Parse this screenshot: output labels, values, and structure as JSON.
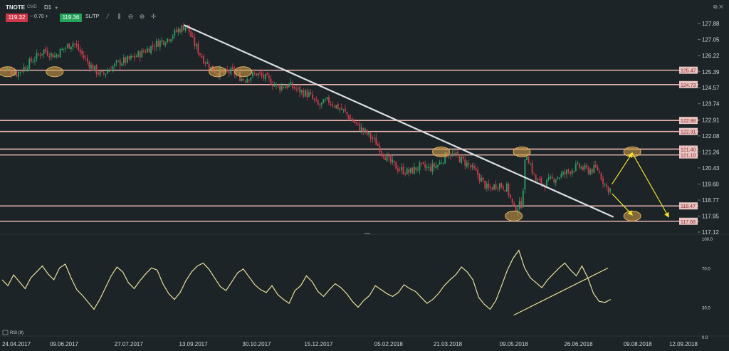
{
  "toolbar": {
    "symbol": "TNOTE",
    "market": "CMD",
    "timeframe": "D1",
    "bid": "119.32",
    "spread_minus": "−",
    "spread": "0.70",
    "spread_plus": "+",
    "ask": "119.36",
    "sltp": "SL/TP",
    "tools": [
      "line-chart-icon",
      "candles-icon",
      "zoom-out-icon",
      "zoom-in-icon",
      "crosshair-icon"
    ]
  },
  "window": {
    "restore_glyph": "⧉",
    "close_glyph": "✕"
  },
  "colors": {
    "background": "#1c2427",
    "bull": "#2aa062",
    "bear": "#d23c4d",
    "level": "#e7b4b0",
    "trend": "#d9dde0",
    "rsi": "#e6df9c",
    "highlight": "#d9a24a",
    "forecast": "#f2e22d"
  },
  "chart_data": [
    {
      "type": "candlestick",
      "title": "TNOTE",
      "ylim": [
        117.12,
        127.88
      ],
      "y_ticks": [
        "127.88",
        "127.05",
        "126.22",
        "125.39",
        "124.57",
        "123.74",
        "122.91",
        "122.08",
        "121.26",
        "120.43",
        "119.60",
        "118.77",
        "117.95",
        "117.12"
      ],
      "x_ticks": [
        "24.04.2017",
        "09.06.2017",
        "27.07.2017",
        "13.09.2017",
        "30.10.2017",
        "15.12.2017",
        "05.02.2018",
        "21.03.2018",
        "09.05.2018",
        "26.06.2018",
        "09.08.2018",
        "12.09.2018"
      ],
      "levels": [
        {
          "value": 125.47,
          "label": "125.47"
        },
        {
          "value": 124.73,
          "label": "124.73"
        },
        {
          "value": 122.88,
          "label": "122.88"
        },
        {
          "value": 122.31,
          "label": "122.31"
        },
        {
          "value": 121.4,
          "label": "121.40"
        },
        {
          "value": 121.1,
          "label": "121.10"
        },
        {
          "value": 118.47,
          "label": "118.47"
        },
        {
          "value": 117.68,
          "label": "117.68"
        }
      ],
      "close_path": [
        [
          "24.04.2017",
          125.6
        ],
        [
          "05.05.2017",
          125.3
        ],
        [
          "15.05.2017",
          125.9
        ],
        [
          "25.05.2017",
          126.5
        ],
        [
          "02.06.2017",
          126.2
        ],
        [
          "09.06.2017",
          126.6
        ],
        [
          "16.06.2017",
          126.9
        ],
        [
          "23.06.2017",
          126.2
        ],
        [
          "30.06.2017",
          125.6
        ],
        [
          "07.07.2017",
          125.2
        ],
        [
          "14.07.2017",
          125.6
        ],
        [
          "21.07.2017",
          125.9
        ],
        [
          "27.07.2017",
          126.0
        ],
        [
          "04.08.2017",
          126.3
        ],
        [
          "11.08.2017",
          126.6
        ],
        [
          "18.08.2017",
          126.9
        ],
        [
          "25.08.2017",
          127.1
        ],
        [
          "01.09.2017",
          127.5
        ],
        [
          "08.09.2017",
          127.8
        ],
        [
          "13.09.2017",
          126.9
        ],
        [
          "20.09.2017",
          126.1
        ],
        [
          "27.09.2017",
          125.5
        ],
        [
          "04.10.2017",
          125.3
        ],
        [
          "12.10.2017",
          125.4
        ],
        [
          "20.10.2017",
          125.0
        ],
        [
          "30.10.2017",
          125.3
        ],
        [
          "07.11.2017",
          125.0
        ],
        [
          "15.11.2017",
          124.6
        ],
        [
          "23.11.2017",
          124.7
        ],
        [
          "01.12.2017",
          124.4
        ],
        [
          "08.12.2017",
          124.2
        ],
        [
          "15.12.2017",
          123.6
        ],
        [
          "22.12.2017",
          123.9
        ],
        [
          "02.01.2018",
          123.4
        ],
        [
          "10.01.2018",
          122.8
        ],
        [
          "18.01.2018",
          122.3
        ],
        [
          "26.01.2018",
          121.8
        ],
        [
          "05.02.2018",
          120.8
        ],
        [
          "12.02.2018",
          120.4
        ],
        [
          "20.02.2018",
          120.2
        ],
        [
          "28.02.2018",
          120.5
        ],
        [
          "07.03.2018",
          120.4
        ],
        [
          "14.03.2018",
          120.6
        ],
        [
          "21.03.2018",
          121.2
        ],
        [
          "28.03.2018",
          121.0
        ],
        [
          "05.04.2018",
          120.6
        ],
        [
          "12.04.2018",
          120.1
        ],
        [
          "20.04.2018",
          119.3
        ],
        [
          "27.04.2018",
          119.6
        ],
        [
          "04.05.2018",
          119.4
        ],
        [
          "09.05.2018",
          118.3
        ],
        [
          "15.05.2018",
          118.6
        ],
        [
          "18.05.2018",
          121.3
        ],
        [
          "25.05.2018",
          119.8
        ],
        [
          "01.06.2018",
          119.6
        ],
        [
          "08.06.2018",
          119.9
        ],
        [
          "15.06.2018",
          120.1
        ],
        [
          "22.06.2018",
          120.4
        ],
        [
          "26.06.2018",
          120.5
        ],
        [
          "03.07.2018",
          120.3
        ],
        [
          "10.07.2018",
          120.4
        ],
        [
          "17.07.2018",
          119.4
        ],
        [
          "20.07.2018",
          119.3
        ]
      ],
      "trendline": [
        [
          "06.09.2017",
          127.8
        ],
        [
          "22.07.2018",
          117.9
        ]
      ],
      "highlights": [
        [
          "28.04.2017",
          125.39
        ],
        [
          "02.06.2017",
          125.39
        ],
        [
          "01.10.2017",
          125.39
        ],
        [
          "20.10.2017",
          125.39
        ],
        [
          "16.03.2018",
          121.26
        ],
        [
          "09.05.2018",
          117.95
        ],
        [
          "15.05.2018",
          121.26
        ],
        [
          "05.08.2018",
          121.26
        ],
        [
          "05.08.2018",
          117.95
        ]
      ],
      "forecast": [
        [
          [
            "21.07.2018",
            119.6
          ],
          [
            "05.08.2018",
            121.2
          ],
          [
            "01.09.2018",
            117.9
          ]
        ],
        [
          [
            "21.07.2018",
            119.1
          ],
          [
            "05.08.2018",
            118.0
          ]
        ]
      ]
    },
    {
      "type": "line",
      "legend": "RSI (9)",
      "ylim": [
        0,
        100
      ],
      "y_ticks": [
        "100.0",
        "70.0",
        "30.0",
        "0.0"
      ],
      "values": [
        58,
        52,
        63,
        56,
        49,
        60,
        66,
        72,
        64,
        58,
        70,
        74,
        60,
        48,
        42,
        35,
        28,
        38,
        50,
        62,
        71,
        66,
        55,
        49,
        57,
        64,
        70,
        68,
        54,
        44,
        38,
        45,
        57,
        66,
        72,
        75,
        69,
        60,
        51,
        47,
        56,
        65,
        69,
        61,
        53,
        48,
        45,
        52,
        43,
        38,
        34,
        47,
        52,
        62,
        56,
        46,
        41,
        48,
        54,
        50,
        44,
        36,
        30,
        37,
        42,
        52,
        48,
        44,
        41,
        45,
        53,
        49,
        46,
        40,
        34,
        38,
        44,
        52,
        58,
        63,
        71,
        66,
        58,
        40,
        33,
        28,
        37,
        52,
        68,
        80,
        88,
        70,
        60,
        55,
        50,
        58,
        64,
        70,
        75,
        68,
        62,
        72,
        60,
        44,
        36,
        35,
        38
      ],
      "trendline": [
        [
          "09.05.2018",
          22
        ],
        [
          "18.07.2018",
          70
        ]
      ]
    }
  ]
}
